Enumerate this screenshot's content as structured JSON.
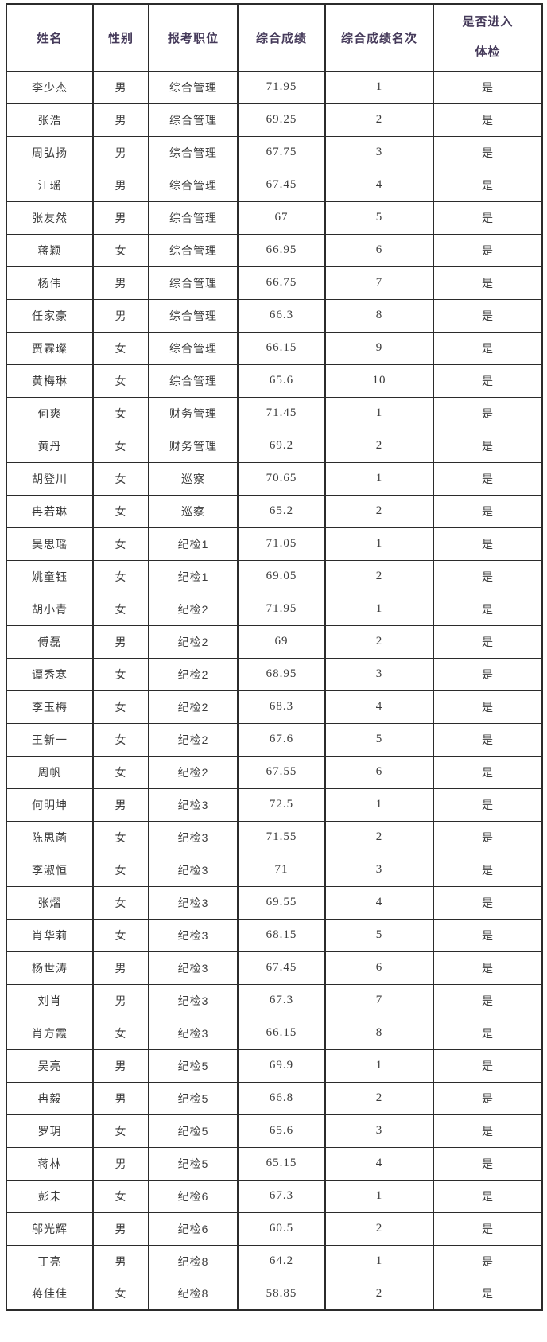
{
  "colors": {
    "border": "#2b2b2b",
    "header_text": "#453a5a",
    "body_text": "#3c3c3c",
    "background": "#ffffff"
  },
  "table": {
    "headers": [
      "姓名",
      "性别",
      "报考职位",
      "综合成绩",
      "综合成绩名次"
    ],
    "exam_header": {
      "line1": "是否进入",
      "line2": "体检"
    },
    "columns": [
      "name",
      "gender",
      "position",
      "score",
      "rank",
      "pass"
    ],
    "rows": [
      {
        "name": "李少杰",
        "gender": "男",
        "position": "综合管理",
        "score": "71.95",
        "rank": "1",
        "pass": "是"
      },
      {
        "name": "张浩",
        "gender": "男",
        "position": "综合管理",
        "score": "69.25",
        "rank": "2",
        "pass": "是"
      },
      {
        "name": "周弘扬",
        "gender": "男",
        "position": "综合管理",
        "score": "67.75",
        "rank": "3",
        "pass": "是"
      },
      {
        "name": "江瑶",
        "gender": "男",
        "position": "综合管理",
        "score": "67.45",
        "rank": "4",
        "pass": "是"
      },
      {
        "name": "张友然",
        "gender": "男",
        "position": "综合管理",
        "score": "67",
        "rank": "5",
        "pass": "是"
      },
      {
        "name": "蒋颖",
        "gender": "女",
        "position": "综合管理",
        "score": "66.95",
        "rank": "6",
        "pass": "是"
      },
      {
        "name": "杨伟",
        "gender": "男",
        "position": "综合管理",
        "score": "66.75",
        "rank": "7",
        "pass": "是"
      },
      {
        "name": "任家豪",
        "gender": "男",
        "position": "综合管理",
        "score": "66.3",
        "rank": "8",
        "pass": "是"
      },
      {
        "name": "贾霖璨",
        "gender": "女",
        "position": "综合管理",
        "score": "66.15",
        "rank": "9",
        "pass": "是"
      },
      {
        "name": "黄梅琳",
        "gender": "女",
        "position": "综合管理",
        "score": "65.6",
        "rank": "10",
        "pass": "是"
      },
      {
        "name": "何爽",
        "gender": "女",
        "position": "财务管理",
        "score": "71.45",
        "rank": "1",
        "pass": "是"
      },
      {
        "name": "黄丹",
        "gender": "女",
        "position": "财务管理",
        "score": "69.2",
        "rank": "2",
        "pass": "是"
      },
      {
        "name": "胡登川",
        "gender": "女",
        "position": "巡察",
        "score": "70.65",
        "rank": "1",
        "pass": "是"
      },
      {
        "name": "冉若琳",
        "gender": "女",
        "position": "巡察",
        "score": "65.2",
        "rank": "2",
        "pass": "是"
      },
      {
        "name": "吴思瑶",
        "gender": "女",
        "position": "纪检1",
        "score": "71.05",
        "rank": "1",
        "pass": "是"
      },
      {
        "name": "姚童钰",
        "gender": "女",
        "position": "纪检1",
        "score": "69.05",
        "rank": "2",
        "pass": "是"
      },
      {
        "name": "胡小青",
        "gender": "女",
        "position": "纪检2",
        "score": "71.95",
        "rank": "1",
        "pass": "是"
      },
      {
        "name": "傅磊",
        "gender": "男",
        "position": "纪检2",
        "score": "69",
        "rank": "2",
        "pass": "是"
      },
      {
        "name": "谭秀寒",
        "gender": "女",
        "position": "纪检2",
        "score": "68.95",
        "rank": "3",
        "pass": "是"
      },
      {
        "name": "李玉梅",
        "gender": "女",
        "position": "纪检2",
        "score": "68.3",
        "rank": "4",
        "pass": "是"
      },
      {
        "name": "王新一",
        "gender": "女",
        "position": "纪检2",
        "score": "67.6",
        "rank": "5",
        "pass": "是"
      },
      {
        "name": "周帆",
        "gender": "女",
        "position": "纪检2",
        "score": "67.55",
        "rank": "6",
        "pass": "是"
      },
      {
        "name": "何明坤",
        "gender": "男",
        "position": "纪检3",
        "score": "72.5",
        "rank": "1",
        "pass": "是"
      },
      {
        "name": "陈思菡",
        "gender": "女",
        "position": "纪检3",
        "score": "71.55",
        "rank": "2",
        "pass": "是"
      },
      {
        "name": "李淑恒",
        "gender": "女",
        "position": "纪检3",
        "score": "71",
        "rank": "3",
        "pass": "是"
      },
      {
        "name": "张熠",
        "gender": "女",
        "position": "纪检3",
        "score": "69.55",
        "rank": "4",
        "pass": "是"
      },
      {
        "name": "肖华莉",
        "gender": "女",
        "position": "纪检3",
        "score": "68.15",
        "rank": "5",
        "pass": "是"
      },
      {
        "name": "杨世涛",
        "gender": "男",
        "position": "纪检3",
        "score": "67.45",
        "rank": "6",
        "pass": "是"
      },
      {
        "name": "刘肖",
        "gender": "男",
        "position": "纪检3",
        "score": "67.3",
        "rank": "7",
        "pass": "是"
      },
      {
        "name": "肖方霞",
        "gender": "女",
        "position": "纪检3",
        "score": "66.15",
        "rank": "8",
        "pass": "是"
      },
      {
        "name": "吴亮",
        "gender": "男",
        "position": "纪检5",
        "score": "69.9",
        "rank": "1",
        "pass": "是"
      },
      {
        "name": "冉毅",
        "gender": "男",
        "position": "纪检5",
        "score": "66.8",
        "rank": "2",
        "pass": "是"
      },
      {
        "name": "罗玥",
        "gender": "女",
        "position": "纪检5",
        "score": "65.6",
        "rank": "3",
        "pass": "是"
      },
      {
        "name": "蒋林",
        "gender": "男",
        "position": "纪检5",
        "score": "65.15",
        "rank": "4",
        "pass": "是"
      },
      {
        "name": "彭未",
        "gender": "女",
        "position": "纪检6",
        "score": "67.3",
        "rank": "1",
        "pass": "是"
      },
      {
        "name": "邬光辉",
        "gender": "男",
        "position": "纪检6",
        "score": "60.5",
        "rank": "2",
        "pass": "是"
      },
      {
        "name": "丁亮",
        "gender": "男",
        "position": "纪检8",
        "score": "64.2",
        "rank": "1",
        "pass": "是"
      },
      {
        "name": "蒋佳佳",
        "gender": "女",
        "position": "纪检8",
        "score": "58.85",
        "rank": "2",
        "pass": "是"
      }
    ]
  }
}
